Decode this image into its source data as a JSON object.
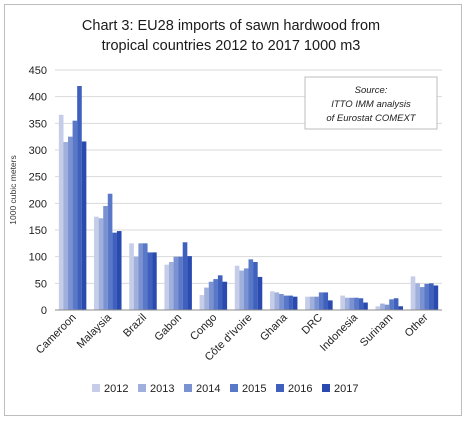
{
  "chart_data": {
    "type": "bar",
    "title_lines": [
      "Chart 3: EU28 imports of sawn hardwood from",
      "tropical countries    2012 to 2017    1000 m3"
    ],
    "ylabel": "1000 cubic meters",
    "ylim": [
      0,
      450
    ],
    "yticks": [
      0,
      50,
      100,
      150,
      200,
      250,
      300,
      350,
      400,
      450
    ],
    "grid": true,
    "legend_position": "bottom",
    "annotation_lines": [
      "Source:",
      "ITTO IMM analysis",
      "of Eurostat COMEXT"
    ],
    "categories": [
      "Cameroon",
      "Malaysia",
      "Brazil",
      "Gabon",
      "Congo",
      "Côte d'Ivoire",
      "Ghana",
      "DRC",
      "Indonesia",
      "Surinam",
      "Other"
    ],
    "series": [
      {
        "name": "2012",
        "color": "#c5cde8",
        "values": [
          366,
          175,
          125,
          85,
          28,
          83,
          35,
          25,
          27,
          7,
          63
        ]
      },
      {
        "name": "2013",
        "color": "#9fb0dc",
        "values": [
          315,
          172,
          100,
          90,
          42,
          74,
          33,
          25,
          23,
          12,
          50
        ]
      },
      {
        "name": "2014",
        "color": "#7b92d2",
        "values": [
          325,
          195,
          125,
          100,
          53,
          78,
          30,
          25,
          23,
          10,
          43
        ]
      },
      {
        "name": "2015",
        "color": "#5a78c8",
        "values": [
          355,
          218,
          125,
          100,
          58,
          95,
          27,
          33,
          23,
          20,
          49
        ]
      },
      {
        "name": "2016",
        "color": "#3f61bd",
        "values": [
          420,
          145,
          108,
          127,
          65,
          90,
          27,
          33,
          22,
          22,
          50
        ]
      },
      {
        "name": "2017",
        "color": "#2a4ab0",
        "values": [
          316,
          148,
          108,
          101,
          53,
          62,
          25,
          18,
          14,
          7,
          46
        ]
      }
    ]
  }
}
